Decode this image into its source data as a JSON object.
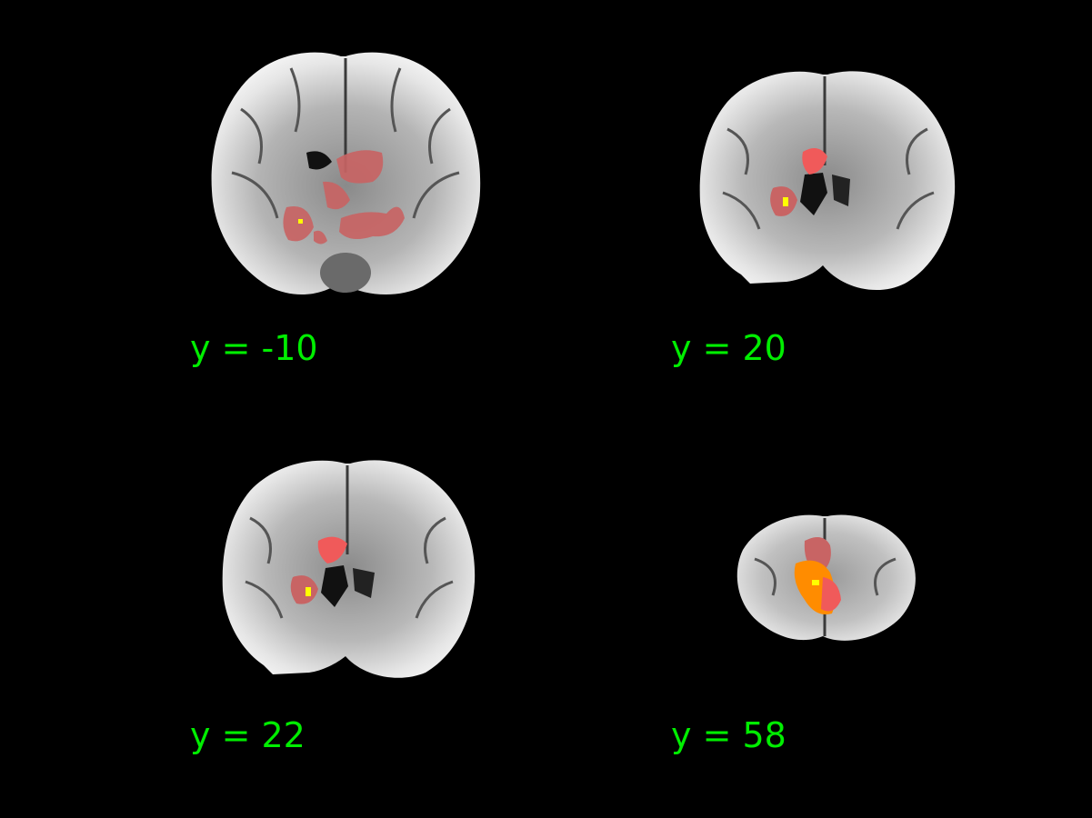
{
  "colors": {
    "background": "#000000",
    "label": "#00ee00",
    "brain_outer": "#f0f0f0",
    "brain_inner": "#9a9a9a",
    "activation_low": "#c86464",
    "activation_mid": "#f05a5a",
    "activation_high": "#ff8c00",
    "activation_peak": "#ffff00"
  },
  "slices": [
    {
      "label": "y = -10"
    },
    {
      "label": "y = 20"
    },
    {
      "label": "y = 22"
    },
    {
      "label": "y = 58"
    }
  ]
}
